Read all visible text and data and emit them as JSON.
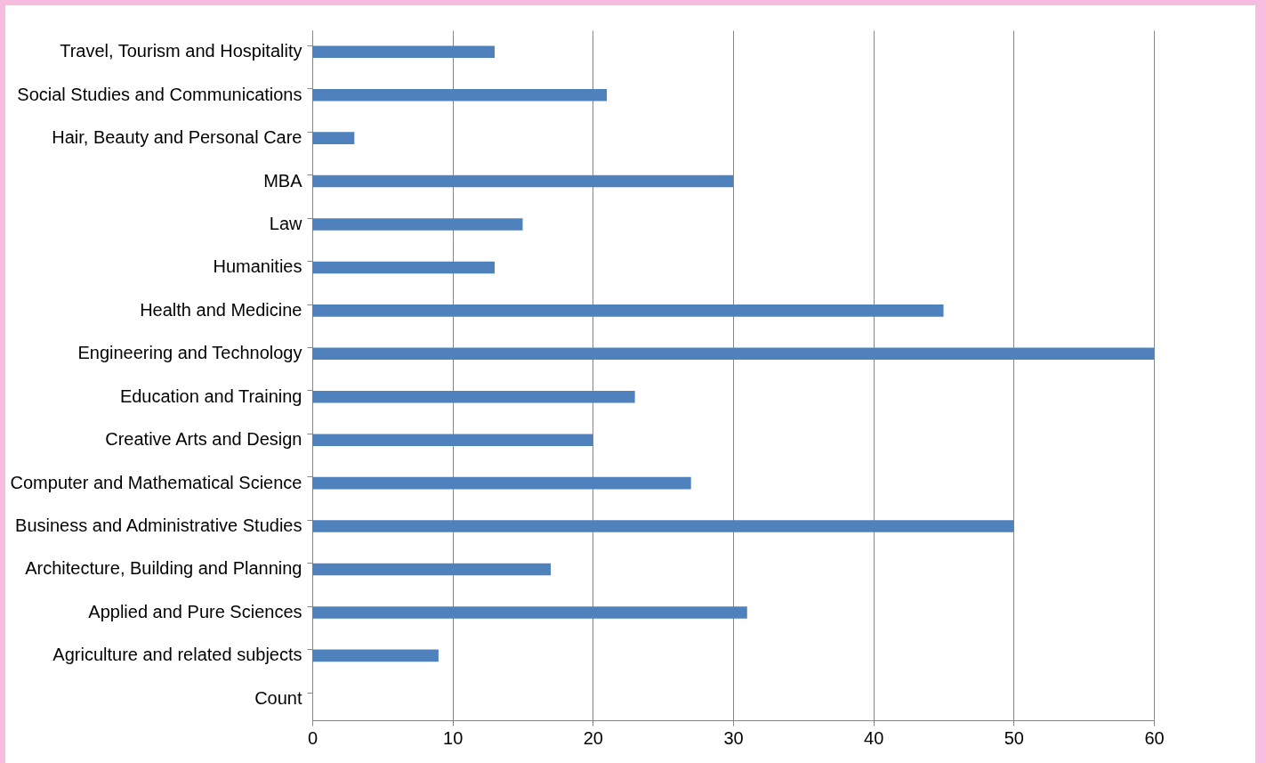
{
  "chart_data": {
    "type": "bar",
    "orientation": "horizontal",
    "categories": [
      "Travel, Tourism and Hospitality",
      "Social Studies and Communications",
      "Hair, Beauty and Personal Care",
      "MBA",
      "Law",
      "Humanities",
      "Health and Medicine",
      "Engineering and Technology",
      "Education and Training",
      "Creative Arts and Design",
      "Computer and Mathematical Science",
      "Business and Administrative Studies",
      "Architecture, Building and Planning",
      "Applied and Pure Sciences",
      "Agriculture and related subjects",
      "Count"
    ],
    "values": [
      13,
      21,
      3,
      30,
      15,
      13,
      45,
      60,
      23,
      20,
      27,
      50,
      17,
      31,
      9,
      null
    ],
    "color": "#4f81bd",
    "xlim": [
      0,
      60
    ],
    "xticks": [
      0,
      10,
      20,
      30,
      40,
      50,
      60
    ],
    "grid": "x"
  }
}
